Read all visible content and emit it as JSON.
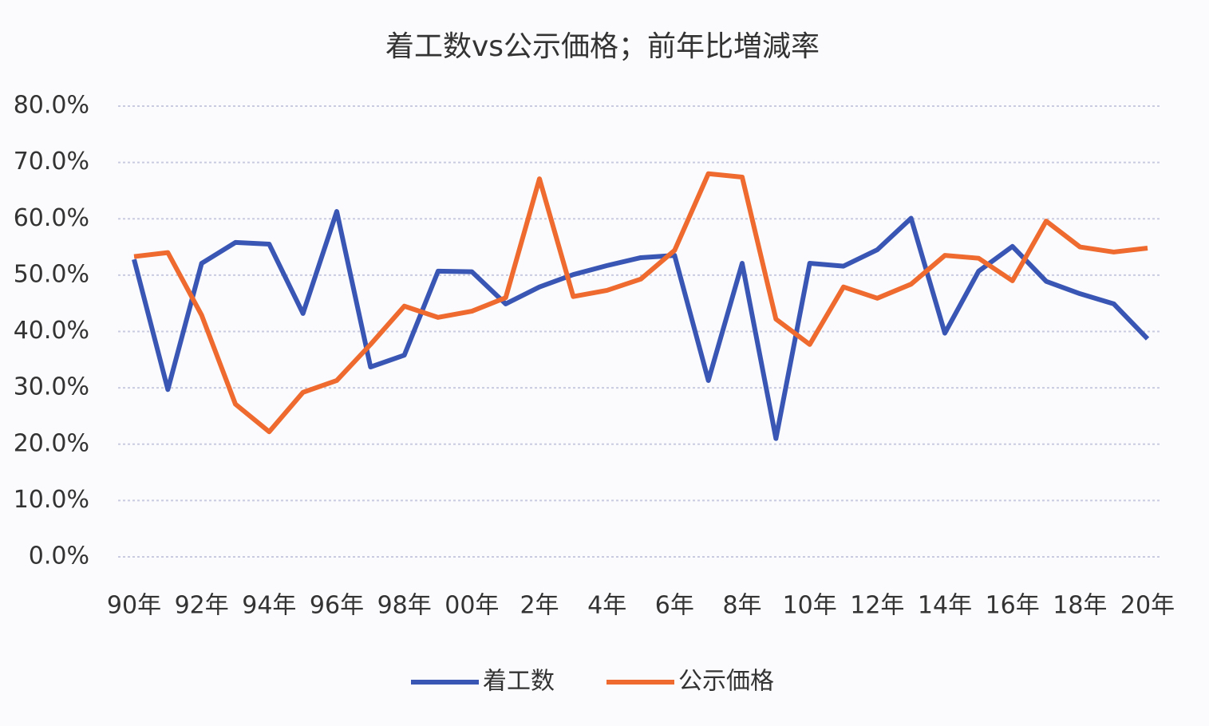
{
  "chart_data": {
    "type": "line",
    "title": "着工数vs公示価格；前年比増減率",
    "categories": [
      "90年",
      null,
      "92年",
      null,
      "94年",
      null,
      "96年",
      null,
      "98年",
      null,
      "00年",
      null,
      "2年",
      null,
      "4年",
      null,
      "6年",
      null,
      "8年",
      null,
      "10年",
      null,
      "12年",
      null,
      "14年",
      null,
      "16年",
      null,
      "18年",
      null,
      "20年"
    ],
    "series": [
      {
        "name": "着工数",
        "color": "#3a56b5",
        "values": [
          52.8,
          29.7,
          52.1,
          55.8,
          55.5,
          43.2,
          61.3,
          33.7,
          35.8,
          50.7,
          50.6,
          44.9,
          47.9,
          50.1,
          51.7,
          53.1,
          53.5,
          31.3,
          52.1,
          21.0,
          52.1,
          51.6,
          54.5,
          60.1,
          39.7,
          50.7,
          55.1,
          48.9,
          46.7,
          44.9,
          38.7
        ]
      },
      {
        "name": "公示価格",
        "color": "#ee6a2e",
        "values": [
          53.3,
          54.0,
          42.9,
          27.1,
          22.2,
          29.2,
          31.3,
          37.7,
          44.5,
          42.5,
          43.6,
          46.0,
          67.1,
          46.2,
          47.3,
          49.3,
          54.4,
          68.0,
          67.4,
          42.2,
          37.7,
          47.9,
          45.9,
          48.4,
          53.5,
          53.0,
          49.0,
          59.6,
          55.0,
          54.1,
          54.8
        ]
      }
    ],
    "ylim": [
      0,
      80
    ],
    "yticks": [
      {
        "value": 0,
        "label": "0.0%"
      },
      {
        "value": 10,
        "label": "10.0%"
      },
      {
        "value": 20,
        "label": "20.0%"
      },
      {
        "value": 30,
        "label": "30.0%"
      },
      {
        "value": 40,
        "label": "40.0%"
      },
      {
        "value": 50,
        "label": "50.0%"
      },
      {
        "value": 60,
        "label": "60.0%"
      },
      {
        "value": 70,
        "label": "70.0%"
      },
      {
        "value": 80,
        "label": "80.0%"
      }
    ],
    "grid": true,
    "legend": "bottom"
  }
}
